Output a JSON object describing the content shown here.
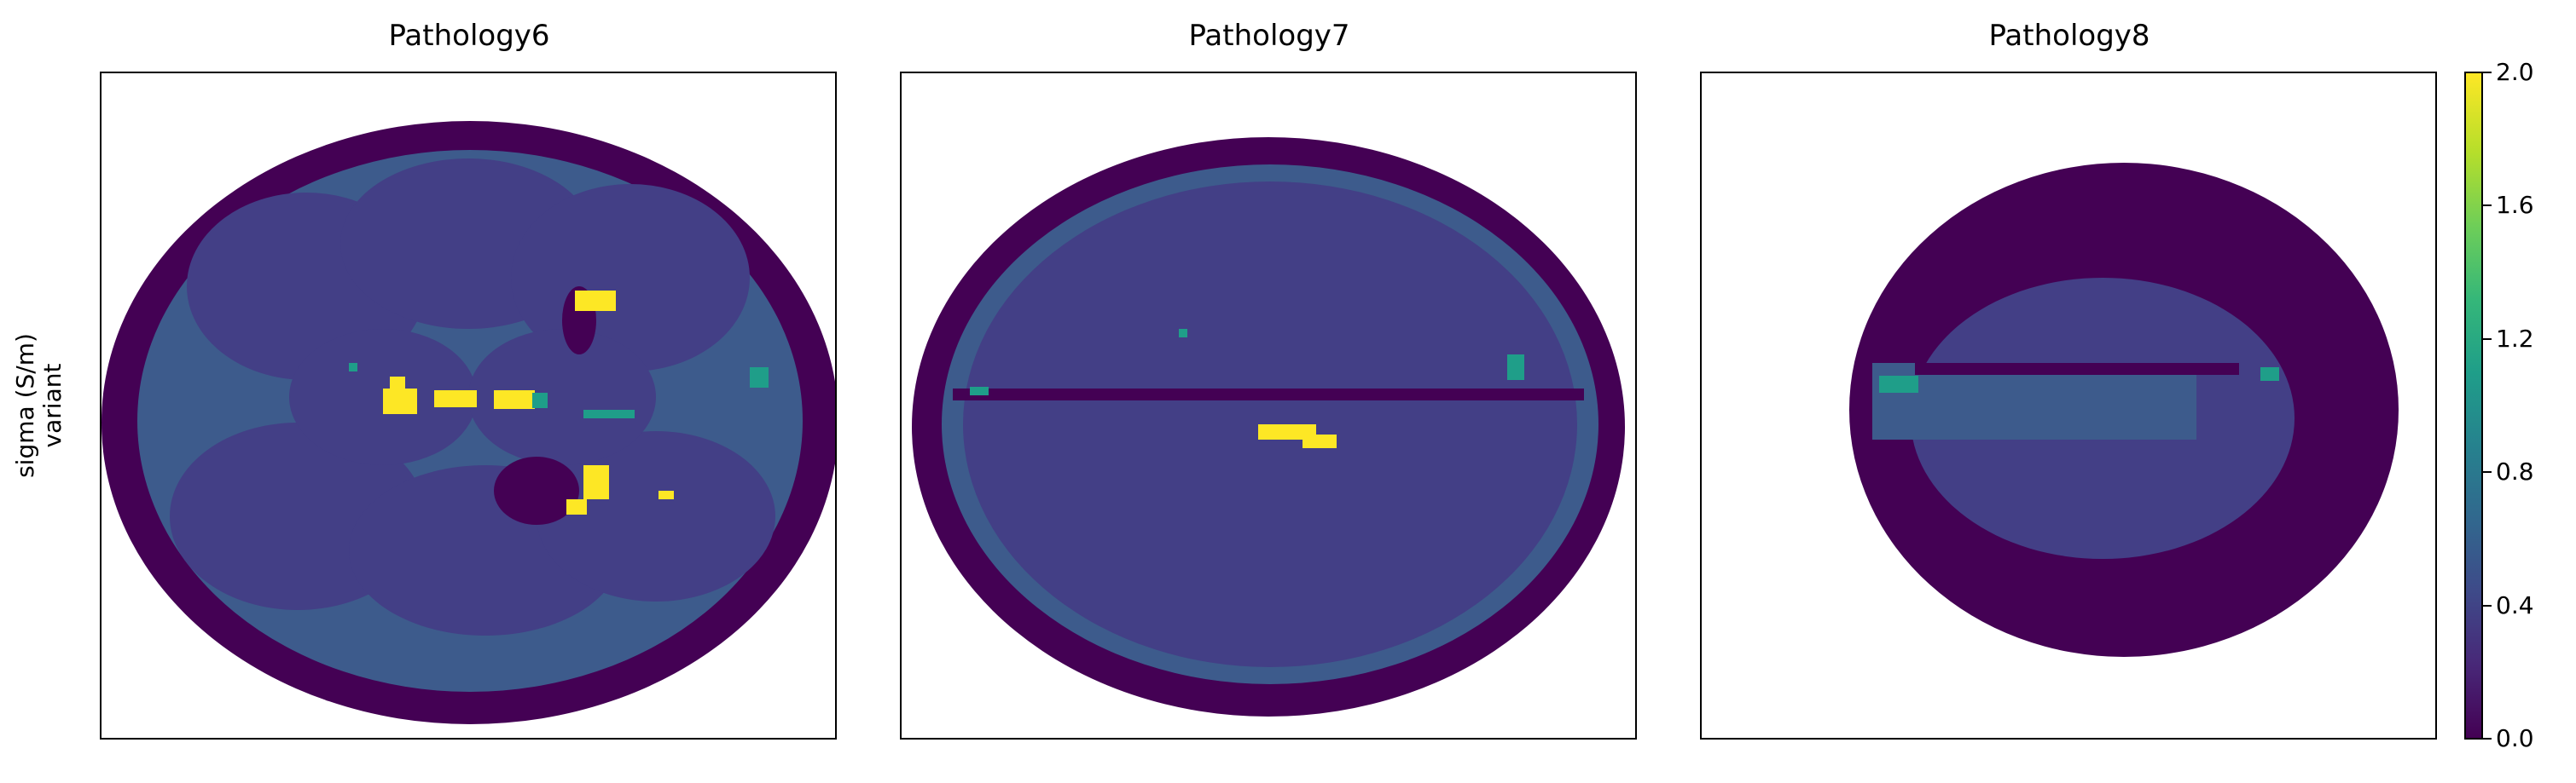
{
  "chart_data": {
    "type": "heatmap",
    "ylabel": "sigma (S/m)\nvariant",
    "colormap": "viridis",
    "color_range": [
      0.0,
      2.0
    ],
    "colorbar_ticks": [
      "0.0",
      "0.4",
      "0.8",
      "1.2",
      "1.6",
      "2.0"
    ],
    "grid": false,
    "panels": [
      {
        "title": "Pathology6",
        "tissue_values": {
          "skull": 0.02,
          "grey": 0.25,
          "white": 0.45,
          "csf": 1.5,
          "lesion": 2.0
        }
      },
      {
        "title": "Pathology7",
        "tissue_values": {
          "skull": 0.02,
          "grey": 0.22,
          "white": 0.3,
          "csf": 1.3,
          "lesion": 2.0
        }
      },
      {
        "title": "Pathology8",
        "tissue_values": {
          "skull": 0.02,
          "grey": 0.3,
          "white": 0.45,
          "csf": 1.4
        }
      }
    ]
  },
  "colors": {
    "skull": "#440154",
    "grey": "#433f86",
    "white": "#3d5b8c",
    "csf": "#1f9e89",
    "lesion": "#fde725"
  }
}
